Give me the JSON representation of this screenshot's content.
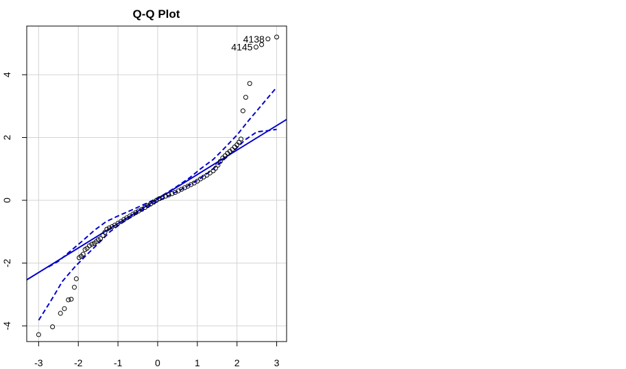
{
  "chart_data": {
    "type": "scatter",
    "title": "Q-Q Plot",
    "xlabel": "",
    "ylabel": "",
    "xlim": [
      -3.3,
      3.25
    ],
    "ylim": [
      -4.5,
      5.55
    ],
    "grid": true,
    "x_ticks": [
      -3,
      -2,
      -1,
      0,
      1,
      2,
      3
    ],
    "y_ticks": [
      -4,
      -2,
      0,
      2,
      4
    ],
    "colors": {
      "points": "#000000",
      "reference_line": "#0000cd",
      "envelope": "#0000cd",
      "grid": "#d3d3d3"
    },
    "points": [
      [
        -3.0,
        -4.28
      ],
      [
        -2.65,
        -4.03
      ],
      [
        -2.45,
        -3.6
      ],
      [
        -2.35,
        -3.45
      ],
      [
        -2.25,
        -3.17
      ],
      [
        -2.18,
        -3.15
      ],
      [
        -2.1,
        -2.77
      ],
      [
        -2.05,
        -2.5
      ],
      [
        -1.98,
        -1.83
      ],
      [
        -1.93,
        -1.78
      ],
      [
        -1.88,
        -1.72
      ],
      [
        -1.83,
        -1.57
      ],
      [
        -1.78,
        -1.53
      ],
      [
        -1.72,
        -1.45
      ],
      [
        -1.66,
        -1.4
      ],
      [
        -1.6,
        -1.37
      ],
      [
        -1.55,
        -1.32
      ],
      [
        -1.5,
        -1.26
      ],
      [
        -1.44,
        -1.22
      ],
      [
        -1.38,
        -1.12
      ],
      [
        -1.33,
        -1.02
      ],
      [
        -1.28,
        -0.92
      ],
      [
        -1.22,
        -0.88
      ],
      [
        -1.15,
        -0.84
      ],
      [
        -1.08,
        -0.79
      ],
      [
        -1.0,
        -0.73
      ],
      [
        -0.92,
        -0.67
      ],
      [
        -0.85,
        -0.61
      ],
      [
        -0.78,
        -0.56
      ],
      [
        -0.7,
        -0.5
      ],
      [
        -0.62,
        -0.44
      ],
      [
        -0.55,
        -0.39
      ],
      [
        -0.48,
        -0.34
      ],
      [
        -0.4,
        -0.29
      ],
      [
        -0.32,
        -0.23
      ],
      [
        -0.25,
        -0.17
      ],
      [
        -0.18,
        -0.12
      ],
      [
        -0.1,
        -0.06
      ],
      [
        -0.03,
        0.0
      ],
      [
        0.04,
        0.05
      ],
      [
        0.12,
        0.09
      ],
      [
        0.2,
        0.13
      ],
      [
        0.28,
        0.17
      ],
      [
        0.36,
        0.21
      ],
      [
        0.44,
        0.25
      ],
      [
        0.52,
        0.3
      ],
      [
        0.6,
        0.35
      ],
      [
        0.68,
        0.4
      ],
      [
        0.76,
        0.45
      ],
      [
        0.84,
        0.5
      ],
      [
        0.92,
        0.55
      ],
      [
        1.0,
        0.61
      ],
      [
        1.08,
        0.68
      ],
      [
        1.16,
        0.74
      ],
      [
        1.24,
        0.8
      ],
      [
        1.32,
        0.87
      ],
      [
        1.4,
        0.94
      ],
      [
        1.46,
        1.02
      ],
      [
        1.52,
        1.12
      ],
      [
        1.58,
        1.24
      ],
      [
        1.64,
        1.35
      ],
      [
        1.7,
        1.42
      ],
      [
        1.76,
        1.5
      ],
      [
        1.82,
        1.56
      ],
      [
        1.88,
        1.62
      ],
      [
        1.94,
        1.7
      ],
      [
        2.0,
        1.77
      ],
      [
        2.05,
        1.85
      ],
      [
        2.1,
        1.95
      ],
      [
        2.15,
        2.85
      ],
      [
        2.22,
        3.28
      ],
      [
        2.32,
        3.72
      ],
      [
        2.48,
        4.88
      ],
      [
        2.62,
        4.96
      ],
      [
        2.78,
        5.14
      ],
      [
        3.0,
        5.2
      ]
    ],
    "reference_line": {
      "intercept": 0.04,
      "slope": 0.78
    },
    "envelope_upper": [
      [
        -2.75,
        -2.12
      ],
      [
        -2.5,
        -1.94
      ],
      [
        -2.2,
        -1.62
      ],
      [
        -1.9,
        -1.3
      ],
      [
        -1.6,
        -0.96
      ],
      [
        -1.3,
        -0.68
      ],
      [
        -1.0,
        -0.5
      ],
      [
        -0.6,
        -0.28
      ],
      [
        -0.2,
        -0.05
      ],
      [
        0.1,
        0.14
      ],
      [
        0.4,
        0.37
      ],
      [
        0.8,
        0.71
      ],
      [
        1.1,
        1.02
      ],
      [
        1.4,
        1.3
      ],
      [
        1.7,
        1.68
      ],
      [
        2.0,
        2.08
      ],
      [
        2.3,
        2.55
      ],
      [
        2.6,
        3.0
      ],
      [
        3.0,
        3.6
      ]
    ],
    "envelope_lower": [
      [
        -3.0,
        -3.82
      ],
      [
        -2.7,
        -3.22
      ],
      [
        -2.4,
        -2.58
      ],
      [
        -2.1,
        -2.14
      ],
      [
        -1.8,
        -1.75
      ],
      [
        -1.5,
        -1.38
      ],
      [
        -1.2,
        -1.0
      ],
      [
        -0.9,
        -0.72
      ],
      [
        -0.5,
        -0.4
      ],
      [
        -0.1,
        -0.1
      ],
      [
        0.2,
        0.1
      ],
      [
        0.6,
        0.35
      ],
      [
        1.0,
        0.63
      ],
      [
        1.3,
        0.9
      ],
      [
        1.6,
        1.22
      ],
      [
        1.9,
        1.55
      ],
      [
        2.2,
        1.92
      ],
      [
        2.5,
        2.18
      ],
      [
        2.8,
        2.22
      ],
      [
        3.0,
        2.26
      ]
    ],
    "labels": [
      {
        "text": "4138",
        "x": 2.78,
        "y": 5.14
      },
      {
        "text": "4145",
        "x": 2.48,
        "y": 4.88
      }
    ]
  }
}
